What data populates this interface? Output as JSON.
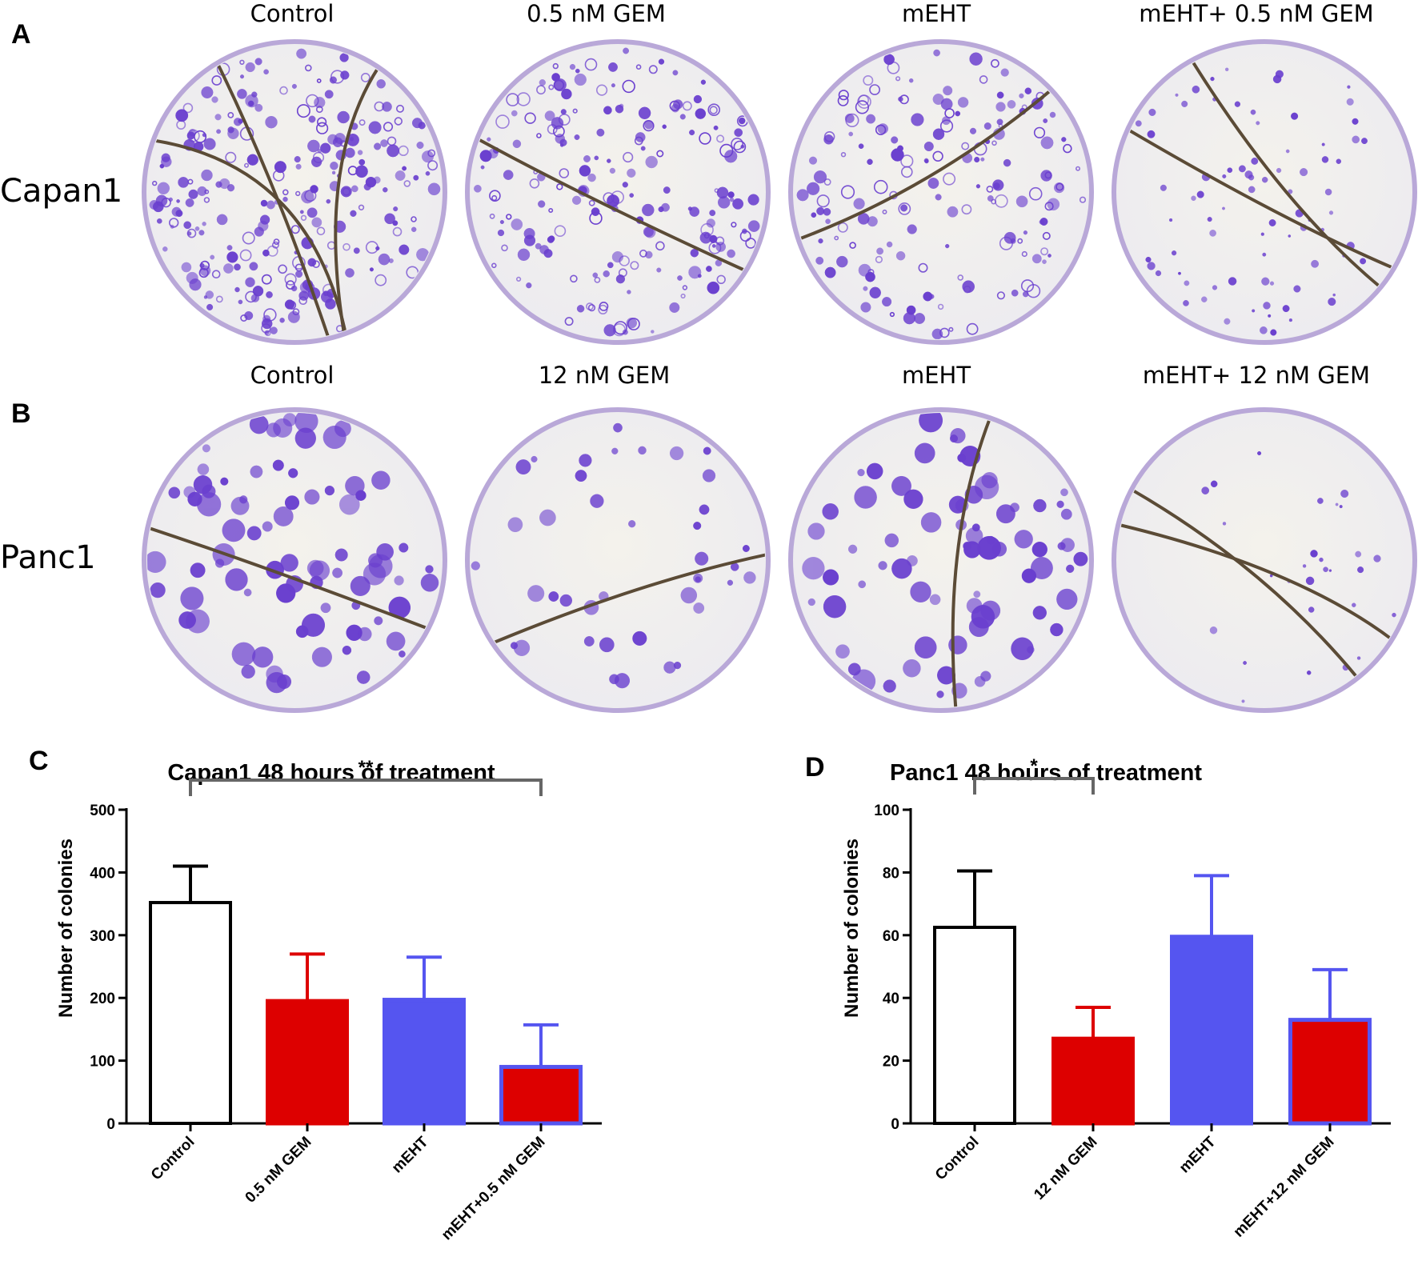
{
  "panels": {
    "A": {
      "letter": "A",
      "cell_line": "Capan1",
      "columns": [
        "Control",
        "0.5 nM GEM",
        "mEHT",
        "mEHT+ 0.5 nM GEM"
      ]
    },
    "B": {
      "letter": "B",
      "cell_line": "Panc1",
      "columns": [
        "Control",
        "12 nM GEM",
        "mEHT",
        "mEHT+ 12 nM GEM"
      ]
    },
    "C": {
      "letter": "C"
    },
    "D": {
      "letter": "D"
    }
  },
  "colors": {
    "stain": "#6a3fcf",
    "dish_bg": "#ecebf0",
    "rim": "#b9a8d8",
    "marker": "#5b4b36",
    "red": "#dd0000",
    "blue": "#5555f0",
    "error_blue": "#5555f0"
  },
  "chart_data": [
    {
      "type": "bar",
      "title": "Capan1 48 hours of treatment",
      "ylabel": "Number of colonies",
      "xlabel": "",
      "categories": [
        "Control",
        "0.5 nM GEM",
        "mEHT",
        "mEHT+0.5 nM GEM"
      ],
      "values": [
        352,
        195,
        197,
        90
      ],
      "errors": [
        58,
        75,
        68,
        67
      ],
      "fills": [
        "#ffffff",
        "#dd0000",
        "#5555f0",
        "#dd0000"
      ],
      "strokes": [
        "#000000",
        "#dd0000",
        "#5555f0",
        "#5555f0"
      ],
      "ylim": [
        0,
        500
      ],
      "yticks": [
        "0",
        "100",
        "200",
        "300",
        "400",
        "500"
      ],
      "significance": [
        {
          "from": "Control",
          "to": "mEHT+0.5 nM GEM",
          "label": "**"
        }
      ]
    },
    {
      "type": "bar",
      "title": "Panc1 48 hours of treatment",
      "ylabel": "Number of colonies",
      "xlabel": "",
      "categories": [
        "Control",
        "12 nM GEM",
        "mEHT",
        "mEHT+12 nM GEM"
      ],
      "values": [
        62.5,
        27,
        59.5,
        33
      ],
      "errors": [
        18,
        10,
        19.5,
        16
      ],
      "fills": [
        "#ffffff",
        "#dd0000",
        "#5555f0",
        "#dd0000"
      ],
      "strokes": [
        "#000000",
        "#dd0000",
        "#5555f0",
        "#5555f0"
      ],
      "ylim": [
        0,
        100
      ],
      "yticks": [
        "0",
        "20",
        "40",
        "60",
        "80",
        "100"
      ],
      "significance": [
        {
          "from": "Control",
          "to": "12 nM GEM",
          "label": "*"
        }
      ]
    }
  ]
}
